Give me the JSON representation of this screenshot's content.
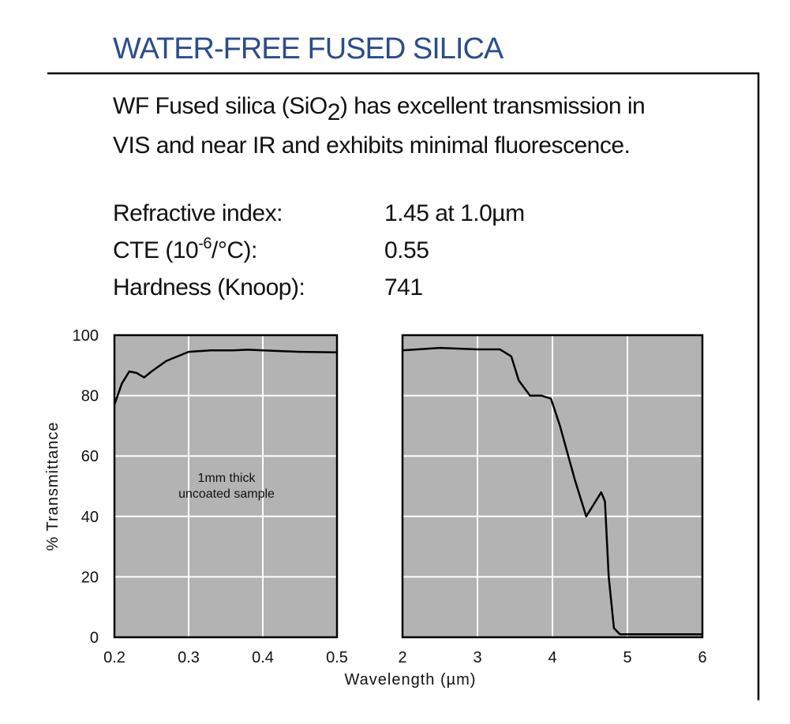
{
  "header": {
    "title": "WATER-FREE FUSED SILICA"
  },
  "description": {
    "line1": [
      "WF Fused silica (SiO",
      "2",
      ") has excellent transmission in"
    ],
    "line2": "VIS and near IR and exhibits minimal fluorescence."
  },
  "properties": [
    {
      "label": [
        "Refractive index:"
      ],
      "value": "1.45 at 1.0µm"
    },
    {
      "label": [
        "CTE (10",
        "-6",
        "/°C):"
      ],
      "value": "0.55"
    },
    {
      "label": [
        "Hardness (Knoop):"
      ],
      "value": "741"
    }
  ],
  "chart_data": [
    {
      "type": "line",
      "ylabel": "% Transmittance",
      "annotation": [
        "1mm thick",
        "uncoated sample"
      ],
      "x": [
        0.2,
        0.21,
        0.22,
        0.23,
        0.24,
        0.25,
        0.27,
        0.3,
        0.33,
        0.36,
        0.38,
        0.4,
        0.45,
        0.5
      ],
      "values": [
        77,
        84,
        88,
        87.5,
        86,
        88,
        91.5,
        94.5,
        95,
        95,
        95.2,
        95,
        94.5,
        94.3
      ],
      "color": "#000000",
      "xlim": [
        0.2,
        0.5
      ],
      "xticks": [
        0.2,
        0.3,
        0.4,
        0.5
      ],
      "ylim": [
        0,
        100
      ],
      "yticks": [
        0,
        20,
        40,
        60,
        80,
        100
      ],
      "grid": true
    },
    {
      "type": "line",
      "xlabel": "Wavelength (µm)",
      "x": [
        2,
        2.5,
        3,
        3.3,
        3.45,
        3.55,
        3.7,
        3.85,
        3.98,
        4.1,
        4.3,
        4.45,
        4.55,
        4.65,
        4.7,
        4.75,
        4.82,
        4.9,
        5.2,
        6
      ],
      "values": [
        95,
        95.8,
        95.3,
        95.3,
        93,
        85,
        80,
        80,
        79,
        70,
        52,
        40,
        44,
        48,
        45,
        20,
        3,
        1,
        1,
        1
      ],
      "color": "#000000",
      "xlim": [
        2,
        6
      ],
      "xticks": [
        2,
        3,
        4,
        5,
        6
      ],
      "ylim": [
        0,
        100
      ],
      "grid": true
    }
  ]
}
